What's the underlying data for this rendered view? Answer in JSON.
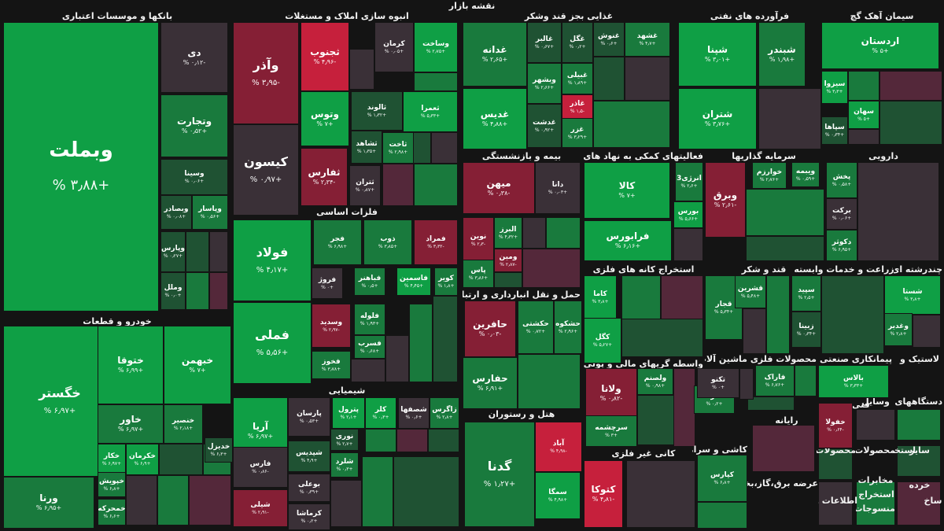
{
  "page_title": "نقشه بازار",
  "colors": {
    "up_strong": "#0f9f45",
    "up": "#197a3d",
    "up_weak": "#1f5233",
    "flat": "#3a3037",
    "down_weak": "#54283a",
    "down": "#851f35",
    "down_strong": "#c6203c",
    "background": "#141414"
  },
  "sectors": [
    "بانکها و موسسات اعتباری",
    "انبوه سازی املاک و مستغلات",
    "غذایی بجز قند وشکر",
    "فرآورده های نفتی",
    "سیمان آهک گچ",
    "خودرو و قطعات",
    "فلزات اساسی",
    "شیمیایی",
    "بیمه و بازنشستگی",
    "فعالیتهای کمکی به نهاد های مالی",
    "سرمایه گذاریها",
    "دارویی",
    "حمل و نقل انبارداری و ارتباطات",
    "استخراج کانه های فلزی",
    "قند و شکر",
    "زراعت و خدمات وابسته",
    "چندرشته ای",
    "هتل و رستوران",
    "واسطه گریهای مالی و پولی",
    "ماشین آلات و",
    "محصولات فلزی",
    "پیمانکاری صنعتی",
    "لاستیک و",
    "کانی غیر فلزی",
    "کاشی و سرامیک",
    "رایانه",
    "فنی و",
    "عرضه برق،گاز،بخار",
    "محصولات",
    "سایر",
    "استخراج",
    "محصولات",
    "دستگاههای",
    "وسایل",
    "مخابرات",
    "خرده",
    "اطلاعات و",
    "منسوجات",
    "استخراج",
    "ساخ"
  ],
  "chart_data": {
    "type": "treemap",
    "title": "نقشه بازار",
    "value_unit": "%",
    "tiles": [
      {
        "name": "وبملت",
        "change": "+۳٫۸۸ %",
        "tone": "up_strong"
      },
      {
        "name": "دی",
        "change": "-۰٫۱۲ %",
        "tone": "flat"
      },
      {
        "name": "وتجارت",
        "change": "+۰٫۵۲ %",
        "tone": "up"
      },
      {
        "name": "وسینا",
        "change": "+۰٫۰۶ %",
        "tone": "up_weak"
      },
      {
        "name": "وبصادر",
        "change": "+۰٫۰۸ %",
        "tone": "up_weak"
      },
      {
        "name": "وپاسار",
        "change": "+۰٫۵۶ %",
        "tone": "up"
      },
      {
        "name": "وپارس",
        "change": "+۰٫۲۷ %",
        "tone": "up_weak"
      },
      {
        "name": "وملل",
        "change": "+۰٫۰ %",
        "tone": "up_weak"
      },
      {
        "name": "وآذر",
        "change": "-۳٫۹۵ %",
        "tone": "down"
      },
      {
        "name": "ثجنوب",
        "change": "-۴٫۹۶ %",
        "tone": "down_strong"
      },
      {
        "name": "کرمان",
        "change": "+۰٫۰۵ %",
        "tone": "flat"
      },
      {
        "name": "وساخت",
        "change": "+۲٫۷۵ %",
        "tone": "up_strong"
      },
      {
        "name": "وتوس",
        "change": "+۷ %",
        "tone": "up_strong"
      },
      {
        "name": "ثالوند",
        "change": "+۱٫۳۲ %",
        "tone": "up_weak"
      },
      {
        "name": "ثعمرا",
        "change": "+۵٫۳۳ %",
        "tone": "up_strong"
      },
      {
        "name": "کیسون",
        "change": "+۰٫۹۷ %",
        "tone": "flat"
      },
      {
        "name": "ثشاهد",
        "change": "+۱٫۳۵ %",
        "tone": "up_weak"
      },
      {
        "name": "ثاخت",
        "change": "+۲٫۹۸ %",
        "tone": "up"
      },
      {
        "name": "ثفارس",
        "change": "-۲٫۳۴ %",
        "tone": "down"
      },
      {
        "name": "ثتران",
        "change": "+۰٫۸۷ %",
        "tone": "flat"
      },
      {
        "name": "غدانه",
        "change": "+۲٫۶۵ %",
        "tone": "up"
      },
      {
        "name": "غالبر",
        "change": "+۰٫۶۷ %",
        "tone": "up_weak"
      },
      {
        "name": "غگل",
        "change": "+۰٫۲ %",
        "tone": "up_weak"
      },
      {
        "name": "غنوش",
        "change": "+۰٫۶ %",
        "tone": "up_weak"
      },
      {
        "name": "غشهد",
        "change": "+۴٫۷ %",
        "tone": "up"
      },
      {
        "name": "غبیلی",
        "change": "+۱٫۸۹ %",
        "tone": "up"
      },
      {
        "name": "وبشهر",
        "change": "+۲٫۶۶ %",
        "tone": "up"
      },
      {
        "name": "غاذر",
        "change": "-۱٫۵ %",
        "tone": "down_strong"
      },
      {
        "name": "غدیس",
        "change": "+۴٫۸۸ %",
        "tone": "up_strong"
      },
      {
        "name": "غدشت",
        "change": "+۰٫۹۲ %",
        "tone": "up_weak"
      },
      {
        "name": "غزر",
        "change": "+۳٫۲۹ %",
        "tone": "up"
      },
      {
        "name": "شپنا",
        "change": "+۳٫۰۱ %",
        "tone": "up_strong"
      },
      {
        "name": "شبندر",
        "change": "+۱٫۹۸ %",
        "tone": "up"
      },
      {
        "name": "شتران",
        "change": "+۳٫۷۶ %",
        "tone": "up_strong"
      },
      {
        "name": "اردستان",
        "change": "+۵ %",
        "tone": "up_strong"
      },
      {
        "name": "سیزوا",
        "change": "+۳٫۳ %",
        "tone": "up_strong"
      },
      {
        "name": "سهان",
        "change": "+۵ %",
        "tone": "up_strong"
      },
      {
        "name": "سپاها",
        "change": "+۰٫۳۴ %",
        "tone": "up_weak"
      },
      {
        "name": "خگستر",
        "change": "+۶٫۹۷ %",
        "tone": "up_strong"
      },
      {
        "name": "ختوقا",
        "change": "+۶٫۹۹ %",
        "tone": "up_strong"
      },
      {
        "name": "خبهمن",
        "change": "+۷ %",
        "tone": "up_strong"
      },
      {
        "name": "خاور",
        "change": "+۶٫۹۷ %",
        "tone": "up"
      },
      {
        "name": "خنصیر",
        "change": "+۲٫۱۸ %",
        "tone": "up"
      },
      {
        "name": "خکار",
        "change": "+۶٫۹۷ %",
        "tone": "up_strong"
      },
      {
        "name": "خکرمان",
        "change": "+۶٫۹ %",
        "tone": "up_strong"
      },
      {
        "name": "خدیزل",
        "change": "+۶٫۳ %",
        "tone": "up_weak"
      },
      {
        "name": "خپویش",
        "change": "+۶٫۸ %",
        "tone": "up"
      },
      {
        "name": "ورنا",
        "change": "+۶٫۹۵ %",
        "tone": "up"
      },
      {
        "name": "خمحرکه",
        "change": "+۶٫۶ %",
        "tone": "up"
      },
      {
        "name": "فولاد",
        "change": "+۴٫۱۷ %",
        "tone": "up_strong"
      },
      {
        "name": "فجر",
        "change": "+۶٫۹۸ %",
        "tone": "up"
      },
      {
        "name": "ذوب",
        "change": "+۳٫۸۵ %",
        "tone": "up"
      },
      {
        "name": "فمراد",
        "change": "-۳٫۳۲ %",
        "tone": "down"
      },
      {
        "name": "فروژ",
        "change": "+۰ %",
        "tone": "flat"
      },
      {
        "name": "فباهنر",
        "change": "+۰٫۵ %",
        "tone": "up"
      },
      {
        "name": "فاسمین",
        "change": "+۴٫۴۵ %",
        "tone": "up_strong"
      },
      {
        "name": "کویر",
        "change": "+۱٫۸ %",
        "tone": "up"
      },
      {
        "name": "فملی",
        "change": "+۵٫۵۶ %",
        "tone": "up_strong"
      },
      {
        "name": "وسدید",
        "change": "-۲٫۹۷ %",
        "tone": "down"
      },
      {
        "name": "فلوله",
        "change": "+۱٫۹۳ %",
        "tone": "up"
      },
      {
        "name": "فسرب",
        "change": "+۰٫۶۸ %",
        "tone": "up"
      },
      {
        "name": "فخوز",
        "change": "+۳٫۷۸ %",
        "tone": "up"
      },
      {
        "name": "آریا",
        "change": "+۶٫۹۷ %",
        "tone": "up_strong"
      },
      {
        "name": "پارسان",
        "change": "+۰٫۵۳ %",
        "tone": "flat"
      },
      {
        "name": "پترول",
        "change": "+۲٫۱ %",
        "tone": "up_strong"
      },
      {
        "name": "کلر",
        "change": "+۰٫۳ %",
        "tone": "up_strong"
      },
      {
        "name": "شصفها",
        "change": "+۰٫۶ %",
        "tone": "flat"
      },
      {
        "name": "زاگرس",
        "change": "+۲٫۸ %",
        "tone": "up"
      },
      {
        "name": "نوری",
        "change": "+۲٫۷ %",
        "tone": "up_weak"
      },
      {
        "name": "فارس",
        "change": "-۰٫۸۶ %",
        "tone": "flat"
      },
      {
        "name": "شپدیس",
        "change": "+۴٫۹ %",
        "tone": "up_weak"
      },
      {
        "name": "شلرد",
        "change": "+۰٫۳ %",
        "tone": "up"
      },
      {
        "name": "بوعلی",
        "change": "+۰٫۳۹ %",
        "tone": "flat"
      },
      {
        "name": "شیلی",
        "change": "-۲٫۹۱ %",
        "tone": "down"
      },
      {
        "name": "کرماشا",
        "change": "+۰٫۲ %",
        "tone": "flat"
      },
      {
        "name": "نوین",
        "change": "-۲٫۳ %",
        "tone": "down"
      },
      {
        "name": "البرز",
        "change": "+۴٫۳۲ %",
        "tone": "up"
      },
      {
        "name": "ومین",
        "change": "-۲٫۸۷ %",
        "tone": "down"
      },
      {
        "name": "پاس",
        "change": "+۳٫۸۶ %",
        "tone": "up"
      },
      {
        "name": "میهن",
        "change": "-۰٫۳۸ %",
        "tone": "down"
      },
      {
        "name": "دانا",
        "change": "+۰٫۰۳ %",
        "tone": "flat"
      },
      {
        "name": "کالا",
        "change": "+۷ %",
        "tone": "up_strong"
      },
      {
        "name": "انرژی3",
        "change": "+۲٫۶ %",
        "tone": "up"
      },
      {
        "name": "بورس",
        "change": "+۵٫۶۶ %",
        "tone": "up_strong"
      },
      {
        "name": "فرابورس",
        "change": "+۶٫۱۶ %",
        "tone": "up_strong"
      },
      {
        "name": "خوارزم",
        "change": "+۲٫۷۶ %",
        "tone": "up"
      },
      {
        "name": "ویبمه",
        "change": "+۰٫۵۹ %",
        "tone": "up"
      },
      {
        "name": "وبرق",
        "change": "-۲٫۶۱ %",
        "tone": "down"
      },
      {
        "name": "پخش",
        "change": "+۰٫۵۸ %",
        "tone": "up"
      },
      {
        "name": "برکت",
        "change": "+۰٫۰۶ %",
        "tone": "flat"
      },
      {
        "name": "دکوثر",
        "change": "+۶٫۹۵ %",
        "tone": "up"
      },
      {
        "name": "حافرین",
        "change": "-۰٫۰۳ %",
        "tone": "down"
      },
      {
        "name": "حکشتی",
        "change": "+۰٫۷۲ %",
        "tone": "up"
      },
      {
        "name": "حشکوه",
        "change": "+۲٫۹۶ %",
        "tone": "up"
      },
      {
        "name": "حفارس",
        "change": "+۶٫۹۱ %",
        "tone": "up"
      },
      {
        "name": "کاما",
        "change": "+۳٫۸ %",
        "tone": "up_strong"
      },
      {
        "name": "کگل",
        "change": "+۵٫۲۷ %",
        "tone": "up_strong"
      },
      {
        "name": "قجار",
        "change": "+۵٫۳۴ %",
        "tone": "up"
      },
      {
        "name": "قشرین",
        "change": "+۵٫۴۸ %",
        "tone": "up"
      },
      {
        "name": "سپید",
        "change": "+۲٫۵ %",
        "tone": "up"
      },
      {
        "name": "زبینا",
        "change": "+۰٫۳۴ %",
        "tone": "up_weak"
      },
      {
        "name": "شستا",
        "change": "+۳٫۸ %",
        "tone": "up_strong"
      },
      {
        "name": "وغدیر",
        "change": "+۲٫۸ %",
        "tone": "up"
      },
      {
        "name": "گدنا",
        "change": "+۱٫۲۷ %",
        "tone": "up"
      },
      {
        "name": "آباد",
        "change": "-۴٫۹۸ %",
        "tone": "down_strong"
      },
      {
        "name": "سمگا",
        "change": "+۴٫۹۸ %",
        "tone": "up_strong"
      },
      {
        "name": "ولانا",
        "change": "-۰٫۸۲ %",
        "tone": "down"
      },
      {
        "name": "ولصنم",
        "change": "+۰٫۹۸ %",
        "tone": "up"
      },
      {
        "name": "لسرما",
        "change": "+۰٫۲ %",
        "tone": "up"
      },
      {
        "name": "سرچشمه",
        "change": "+۳ %",
        "tone": "up"
      },
      {
        "name": "تکنو",
        "change": "+۰ %",
        "tone": "flat"
      },
      {
        "name": "فاراک",
        "change": "+۶٫۷۶ %",
        "tone": "up"
      },
      {
        "name": "بالاس",
        "change": "+۳٫۳۳ %",
        "tone": "up_strong"
      },
      {
        "name": "خفولا",
        "change": "-۰٫۶۴ %",
        "tone": "down"
      },
      {
        "name": "کتوکا",
        "change": "-۴٫۸۱ %",
        "tone": "down_strong"
      },
      {
        "name": "کپارس",
        "change": "+۶٫۸ %",
        "tone": "up"
      }
    ]
  }
}
